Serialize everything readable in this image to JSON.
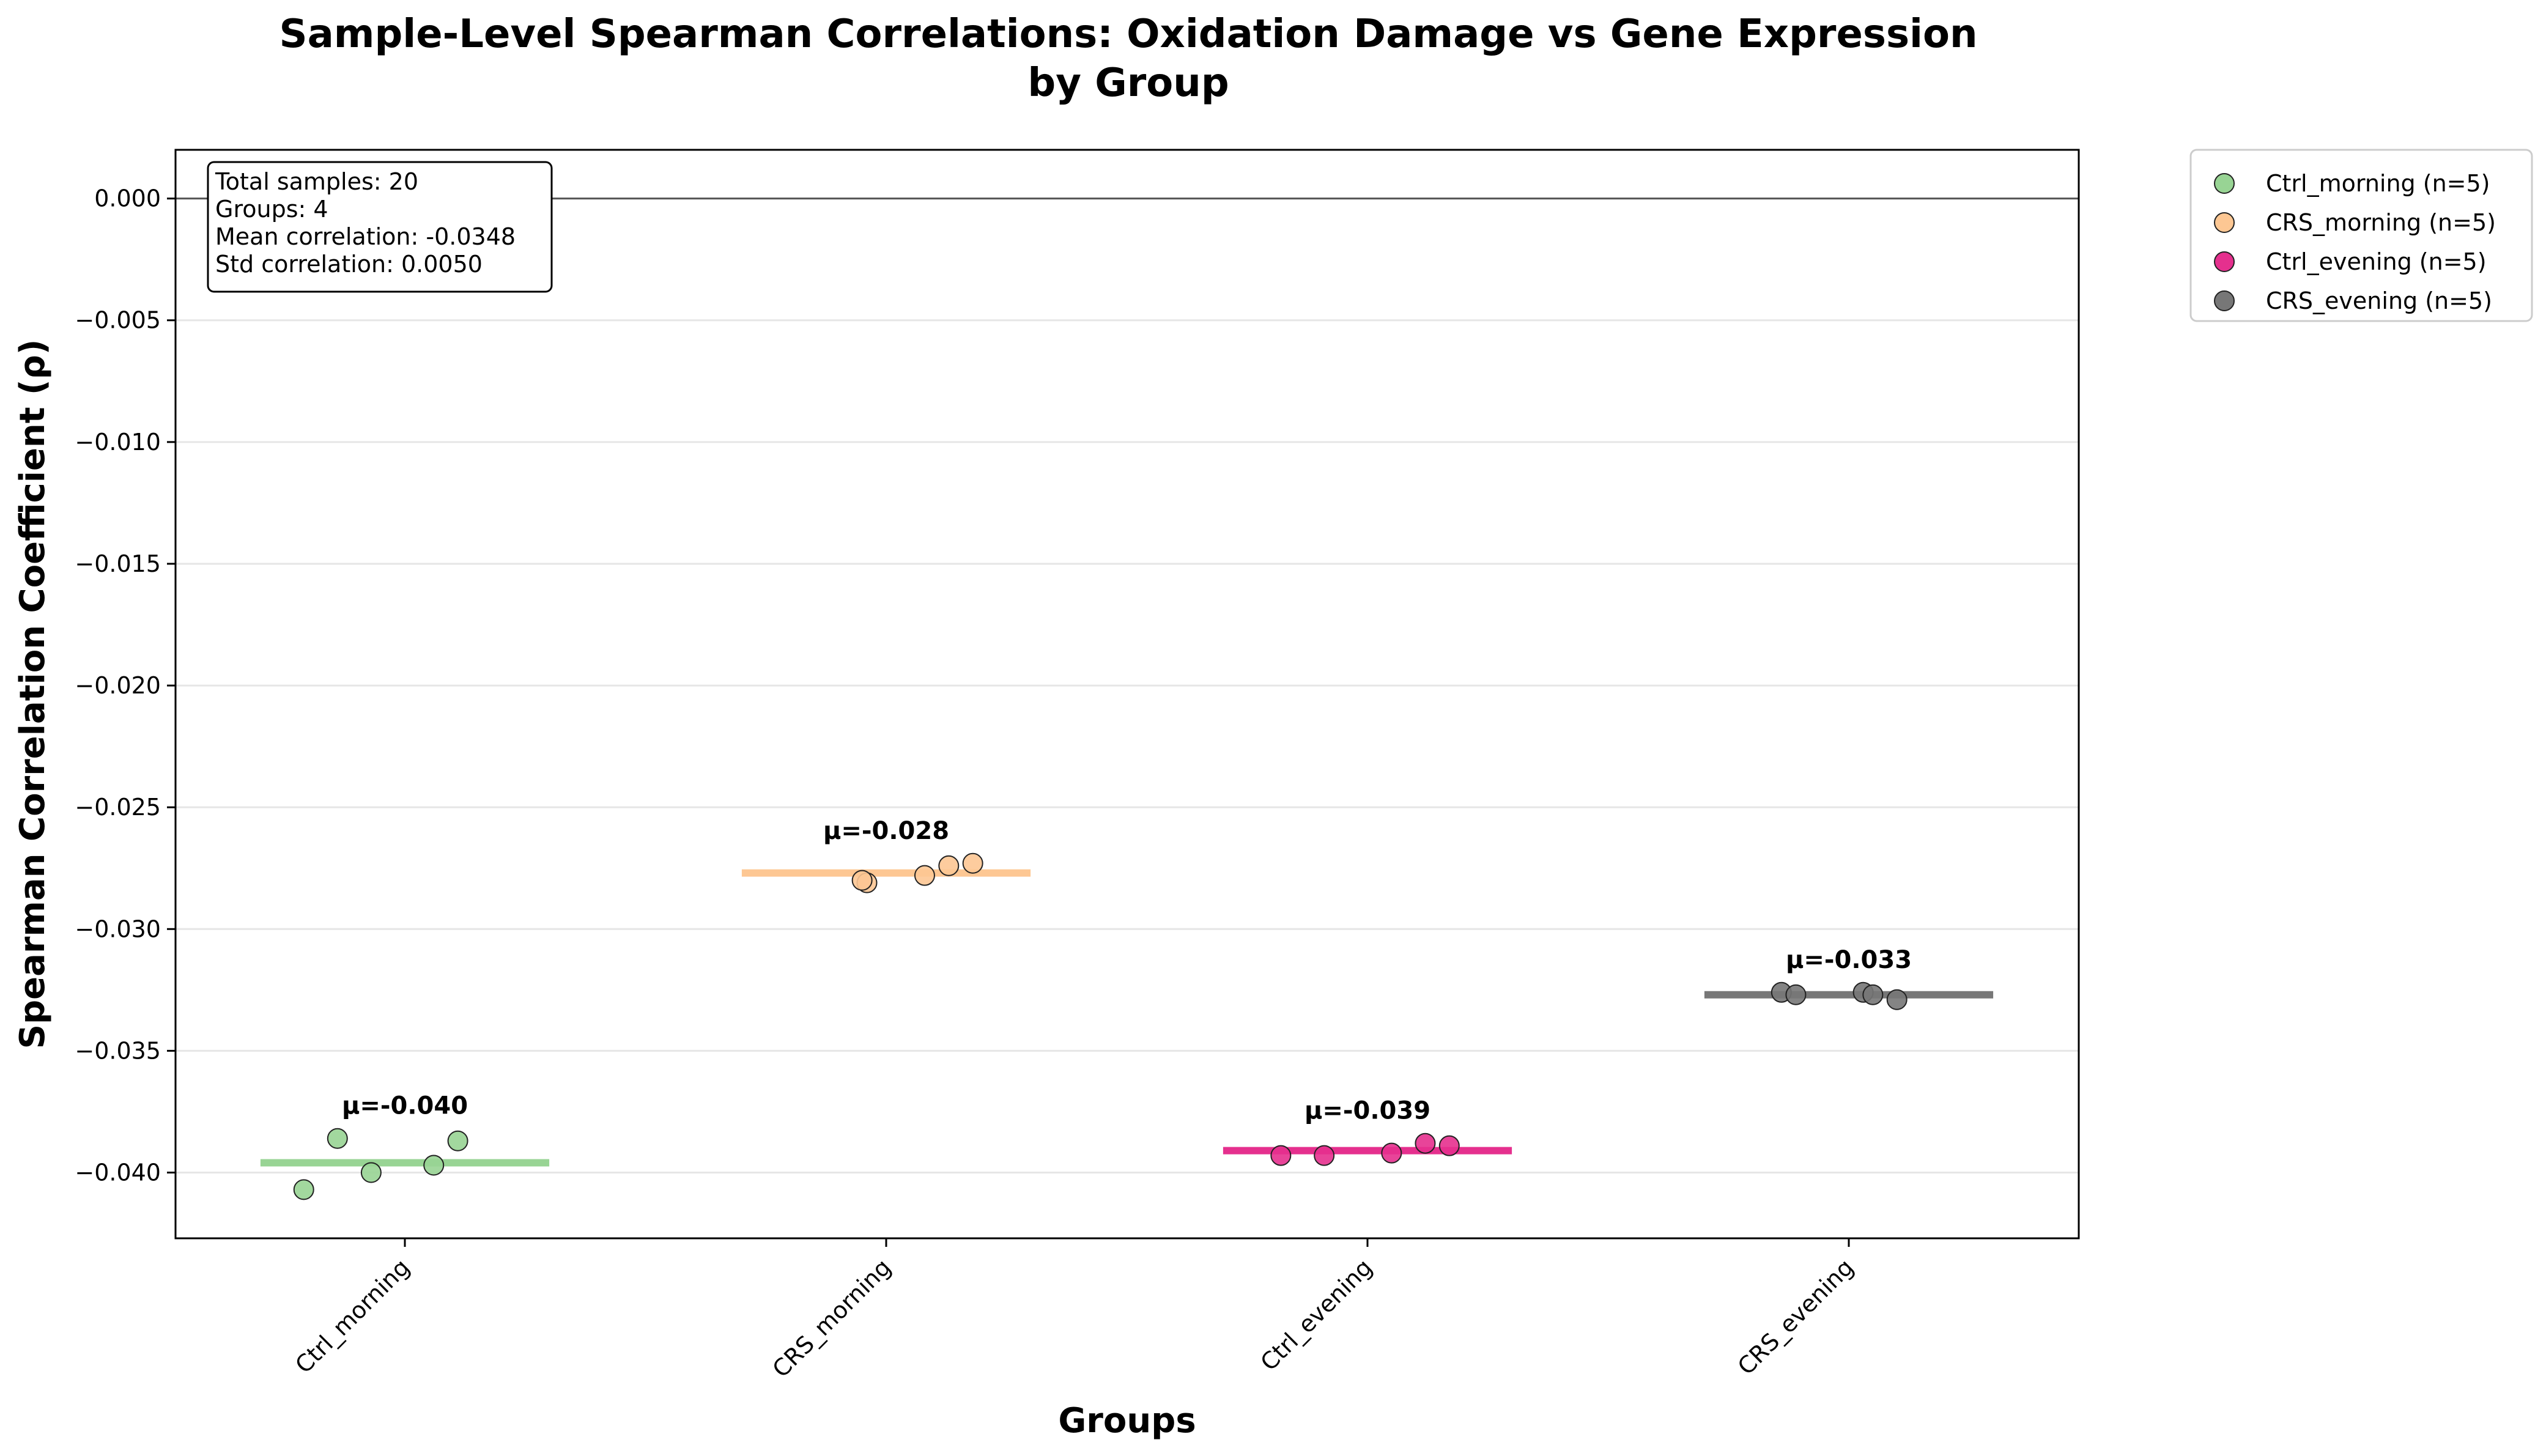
{
  "chart_data": {
    "type": "scatter",
    "title_line1": "Sample-Level Spearman Correlations: Oxidation Damage vs Gene Expression",
    "title_line2": "by Group",
    "xlabel": "Groups",
    "ylabel": "Spearman Correlation Coefficient (ρ)",
    "ylim": [
      -0.0427,
      0.002
    ],
    "yticks": [
      0.0,
      -0.005,
      -0.01,
      -0.015,
      -0.02,
      -0.025,
      -0.03,
      -0.035,
      -0.04
    ],
    "ytick_labels": [
      "0.000",
      "−0.005",
      "−0.010",
      "−0.015",
      "−0.020",
      "−0.025",
      "−0.030",
      "−0.035",
      "−0.040"
    ],
    "grid": "horizontal",
    "legend_position": "outside-top-right",
    "categories": [
      "Ctrl_morning",
      "CRS_morning",
      "Ctrl_evening",
      "CRS_evening"
    ],
    "series": [
      {
        "name": "Ctrl_morning (n=5)",
        "color": "#98d494",
        "mean": -0.0396,
        "mean_label": "μ=-0.040",
        "points": [
          {
            "x": -0.21,
            "y": -0.0407
          },
          {
            "x": -0.14,
            "y": -0.0386
          },
          {
            "x": -0.07,
            "y": -0.04
          },
          {
            "x": 0.06,
            "y": -0.0397
          },
          {
            "x": 0.11,
            "y": -0.0387
          }
        ]
      },
      {
        "name": "CRS_morning (n=5)",
        "color": "#fdc793",
        "mean": -0.0277,
        "mean_label": "μ=-0.028",
        "points": [
          {
            "x": -0.04,
            "y": -0.0281
          },
          {
            "x": -0.05,
            "y": -0.028
          },
          {
            "x": 0.08,
            "y": -0.0278
          },
          {
            "x": 0.13,
            "y": -0.0274
          },
          {
            "x": 0.18,
            "y": -0.0273
          }
        ]
      },
      {
        "name": "Ctrl_evening (n=5)",
        "color": "#e5308e",
        "mean": -0.0391,
        "mean_label": "μ=-0.039",
        "points": [
          {
            "x": -0.18,
            "y": -0.0393
          },
          {
            "x": -0.09,
            "y": -0.0393
          },
          {
            "x": 0.05,
            "y": -0.0392
          },
          {
            "x": 0.12,
            "y": -0.0388
          },
          {
            "x": 0.17,
            "y": -0.0389
          }
        ]
      },
      {
        "name": "CRS_evening (n=5)",
        "color": "#777777",
        "mean": -0.0327,
        "mean_label": "μ=-0.033",
        "points": [
          {
            "x": -0.14,
            "y": -0.0326
          },
          {
            "x": -0.11,
            "y": -0.0327
          },
          {
            "x": 0.03,
            "y": -0.0326
          },
          {
            "x": 0.05,
            "y": -0.0327
          },
          {
            "x": 0.1,
            "y": -0.0329
          }
        ]
      }
    ],
    "reference_line_y": 0.0,
    "stats_box": [
      "Total samples: 20",
      "Groups: 4",
      "Mean correlation: -0.0348",
      "Std correlation: 0.0050"
    ]
  }
}
